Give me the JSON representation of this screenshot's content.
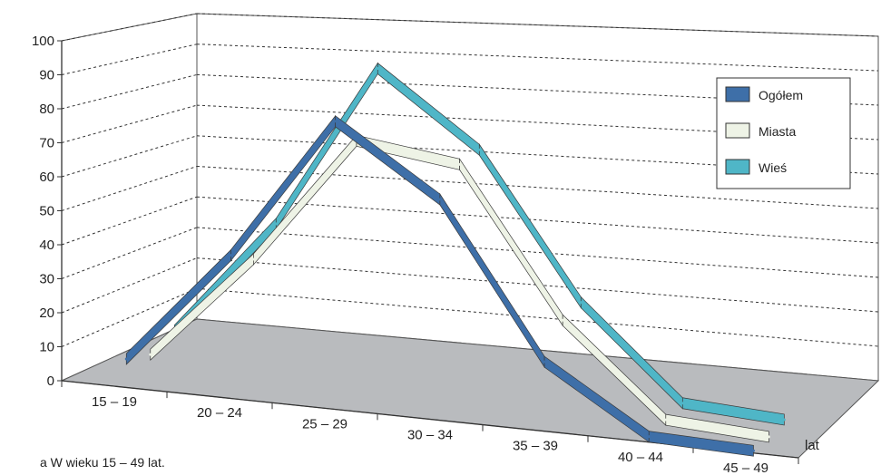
{
  "chart_data": {
    "type": "line",
    "style": "3d-ribbon",
    "categories": [
      "15 – 19",
      "20 – 24",
      "25 – 29",
      "30 – 34",
      "35 – 39",
      "40 – 44",
      "45 – 49"
    ],
    "series": [
      {
        "name": "Ogółem",
        "values": [
          8,
          42,
          85,
          65,
          20,
          1,
          0
        ],
        "color": "#3e6fa8"
      },
      {
        "name": "Miasta",
        "values": [
          6,
          38,
          77,
          73,
          29,
          2,
          0
        ],
        "color": "#eef3e6"
      },
      {
        "name": "Wieś",
        "values": [
          10,
          46,
          97,
          75,
          31,
          3,
          1
        ],
        "color": "#4fb6c7"
      }
    ],
    "y_ticks": [
      "0",
      "10",
      "20",
      "30",
      "40",
      "50",
      "60",
      "70",
      "80",
      "90",
      "100"
    ],
    "ylim": [
      0,
      100
    ],
    "xlabel": "lat",
    "ylabel": "",
    "grid": true,
    "legend_position": "top-right",
    "floor_color": "#b9bbbe",
    "footnote": "a  W wieku 15 – 49 lat."
  }
}
